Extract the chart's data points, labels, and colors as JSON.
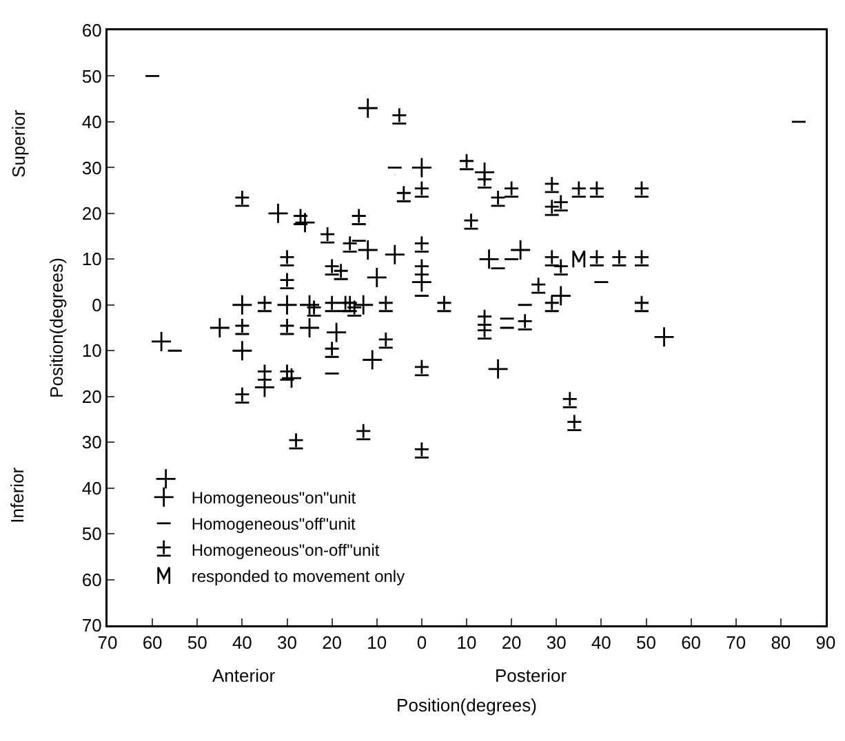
{
  "chart_data": {
    "type": "scatter",
    "xlabel": "Position(degrees)",
    "ylabel": "Position(degrees)",
    "annotations": [
      "Superior",
      "Inferior",
      "Anterior",
      "Posterior"
    ],
    "xlim": [
      -70,
      90
    ],
    "xticks": [
      {
        "value": -70,
        "label": "70"
      },
      {
        "value": -60,
        "label": "60"
      },
      {
        "value": -50,
        "label": "50"
      },
      {
        "value": -40,
        "label": "40"
      },
      {
        "value": -30,
        "label": "30"
      },
      {
        "value": -20,
        "label": "20"
      },
      {
        "value": -10,
        "label": "10"
      },
      0,
      10,
      20,
      30,
      40,
      50,
      60,
      70,
      80,
      90
    ],
    "ylim": [
      -70,
      60
    ],
    "yticks": [
      {
        "value": -70,
        "label": "70"
      },
      {
        "value": -60,
        "label": "60"
      },
      {
        "value": -50,
        "label": "50"
      },
      {
        "value": -40,
        "label": "40"
      },
      {
        "value": -30,
        "label": "30"
      },
      {
        "value": -20,
        "label": "20"
      },
      {
        "value": -10,
        "label": "10"
      },
      0,
      10,
      20,
      30,
      40,
      50,
      60
    ],
    "grid": false,
    "legend": "bottom left",
    "series": [
      {
        "name": "Homogeneous\"on\"unit",
        "color": "#000000",
        "x": [
          -58,
          -12,
          -32,
          -26,
          -12,
          -10,
          -6,
          0,
          0,
          -40,
          -30,
          -25,
          -13,
          -45,
          -25,
          -19,
          -40,
          -35,
          -29,
          -11,
          -57,
          14,
          15,
          22,
          31,
          54,
          17
        ],
        "values": [
          -8,
          43,
          20,
          18,
          12,
          6,
          11,
          30,
          5,
          0,
          0,
          0,
          0,
          -5,
          -5,
          -6,
          -10,
          -18,
          -16,
          -12,
          -38,
          29,
          10,
          12,
          2,
          -7,
          -14
        ]
      },
      {
        "name": "Homogeneous\"off\"unit",
        "color": "#000000",
        "x": [
          -60,
          -55,
          -20,
          -6,
          -14,
          0,
          17,
          20,
          23,
          40,
          84,
          19,
          19
        ],
        "values": [
          50,
          -10,
          -15,
          30,
          14,
          2,
          8,
          10,
          0,
          5,
          40,
          -3,
          -5
        ]
      },
      {
        "name": "Homogeneous\"on-off\"unit",
        "color": "#000000",
        "x": [
          -40,
          -30,
          -30,
          -27,
          -16,
          -14,
          -21,
          -20,
          -18,
          -5,
          -4,
          0,
          0,
          0,
          -35,
          -24,
          -20,
          -17,
          -16,
          -15,
          -8,
          5,
          -40,
          -30,
          -35,
          -40,
          -30,
          -20,
          -28,
          -13,
          -8,
          0,
          0,
          10,
          14,
          17,
          20,
          11,
          29,
          35,
          39,
          49,
          29,
          31,
          29,
          31,
          39,
          44,
          49,
          26,
          29,
          49,
          14,
          14,
          23,
          33,
          34
        ],
        "values": [
          23,
          10,
          5,
          19,
          13,
          19,
          15,
          8,
          7,
          41,
          24,
          25,
          13,
          8,
          0,
          -1,
          0,
          0,
          0,
          -1,
          0,
          0,
          -5,
          -5,
          -15,
          -20,
          -15,
          -10,
          -30,
          -28,
          -8,
          -14,
          -32,
          31,
          27,
          23,
          25,
          18,
          26,
          25,
          25,
          25,
          21,
          22,
          10,
          8,
          10,
          10,
          10,
          4,
          0,
          0,
          -3,
          -6,
          -4,
          -21,
          -26
        ]
      },
      {
        "name": "responded to movement only",
        "color": "#000000",
        "x": [
          35
        ],
        "values": [
          10
        ]
      }
    ]
  }
}
